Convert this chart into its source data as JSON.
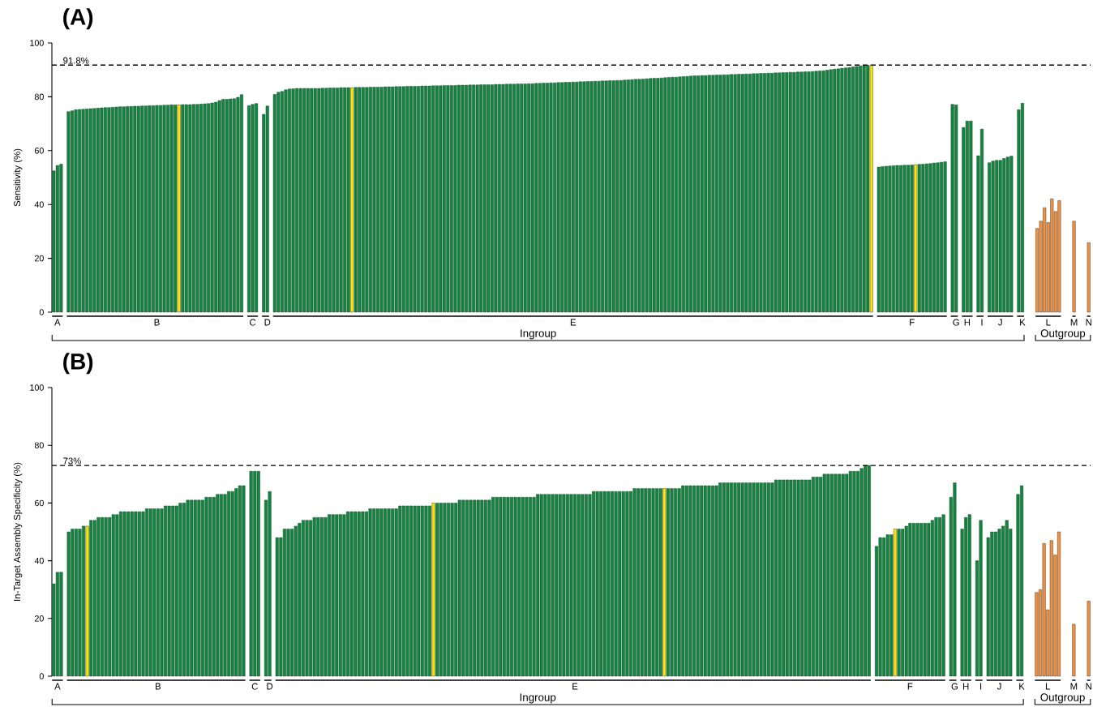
{
  "chart_data": [
    {
      "type": "bar",
      "title": "(A)",
      "ylabel": "Sensitivity (%)",
      "ylim": [
        0,
        100
      ],
      "yticks": [
        0,
        20,
        40,
        60,
        80,
        100
      ],
      "ref_lines": [
        {
          "axis": "y",
          "value": 91.8,
          "label": "91.8%",
          "line_style": "dashed"
        }
      ],
      "annotations": [
        "Ingroup",
        "Outgroup"
      ],
      "categories": [
        null,
        "A",
        null,
        null,
        null,
        null,
        null,
        null,
        null,
        null,
        null,
        null,
        null,
        null,
        null,
        null,
        null,
        null,
        null,
        null,
        null,
        null,
        null,
        null,
        null,
        null,
        null,
        null,
        "B",
        null,
        null,
        null,
        null,
        null,
        null,
        null,
        null,
        null,
        null,
        null,
        null,
        null,
        null,
        null,
        null,
        null,
        null,
        null,
        null,
        null,
        null,
        null,
        null,
        null,
        "C",
        null,
        null,
        null,
        "D",
        null,
        null,
        null,
        null,
        null,
        null,
        null,
        null,
        null,
        null,
        null,
        null,
        null,
        null,
        null,
        null,
        null,
        null,
        null,
        null,
        null,
        null,
        null,
        null,
        null,
        null,
        null,
        null,
        null,
        null,
        null,
        null,
        null,
        null,
        null,
        null,
        null,
        null,
        null,
        null,
        null,
        null,
        null,
        null,
        null,
        null,
        null,
        null,
        null,
        null,
        null,
        null,
        null,
        null,
        null,
        null,
        null,
        null,
        null,
        null,
        null,
        null,
        null,
        null,
        null,
        null,
        null,
        null,
        null,
        null,
        null,
        null,
        null,
        null,
        null,
        null,
        null,
        null,
        null,
        null,
        null,
        null,
        "E",
        null,
        null,
        null,
        null,
        null,
        null,
        null,
        null,
        null,
        null,
        null,
        null,
        null,
        null,
        null,
        null,
        null,
        null,
        null,
        null,
        null,
        null,
        null,
        null,
        null,
        null,
        null,
        null,
        null,
        null,
        null,
        null,
        null,
        null,
        null,
        null,
        null,
        null,
        null,
        null,
        null,
        null,
        null,
        null,
        null,
        null,
        null,
        null,
        null,
        null,
        null,
        null,
        null,
        null,
        null,
        null,
        null,
        null,
        null,
        null,
        null,
        null,
        null,
        null,
        null,
        null,
        null,
        null,
        null,
        null,
        null,
        null,
        null,
        null,
        null,
        null,
        null,
        null,
        null,
        null,
        null,
        null,
        null,
        null,
        null,
        null,
        null,
        null,
        null,
        null,
        null,
        "F",
        null,
        null,
        null,
        null,
        null,
        null,
        null,
        null,
        null,
        null,
        null,
        "G",
        null,
        null,
        "H",
        null,
        null,
        null,
        "I",
        null,
        null,
        null,
        null,
        "J",
        null,
        null,
        null,
        null,
        null,
        "K",
        null,
        null,
        null,
        null,
        null,
        null,
        "L",
        null,
        null,
        null,
        null,
        null,
        null,
        "M",
        null,
        null,
        null,
        "N"
      ],
      "values": [
        52.5,
        54.5,
        55.0,
        null,
        74.5,
        74.8,
        75.2,
        75.3,
        75.4,
        75.5,
        75.6,
        75.7,
        75.8,
        75.9,
        76.0,
        76.0,
        76.1,
        76.2,
        76.3,
        76.3,
        76.4,
        76.4,
        76.5,
        76.5,
        76.6,
        76.6,
        76.7,
        76.7,
        76.8,
        76.8,
        76.9,
        76.9,
        77.0,
        77.0,
        77.0,
        77.1,
        77.1,
        77.1,
        77.2,
        77.2,
        77.3,
        77.4,
        77.5,
        77.7,
        78.0,
        78.6,
        79.1,
        79.1,
        79.2,
        79.3,
        79.8,
        80.8,
        null,
        76.7,
        77.2,
        77.5,
        null,
        73.5,
        76.6,
        null,
        80.9,
        81.7,
        82.0,
        82.6,
        82.9,
        83.0,
        83.1,
        83.1,
        83.1,
        83.1,
        83.1,
        83.1,
        83.1,
        83.2,
        83.2,
        83.3,
        83.3,
        83.3,
        83.4,
        83.4,
        83.4,
        83.4,
        83.5,
        83.5,
        83.5,
        83.5,
        83.6,
        83.6,
        83.6,
        83.6,
        83.7,
        83.7,
        83.7,
        83.8,
        83.8,
        83.8,
        83.9,
        83.9,
        83.9,
        83.9,
        84.0,
        84.0,
        84.0,
        84.1,
        84.1,
        84.1,
        84.2,
        84.2,
        84.2,
        84.2,
        84.3,
        84.3,
        84.3,
        84.4,
        84.4,
        84.4,
        84.5,
        84.5,
        84.5,
        84.5,
        84.6,
        84.6,
        84.6,
        84.7,
        84.7,
        84.7,
        84.8,
        84.8,
        84.8,
        84.9,
        84.9,
        85.0,
        85.0,
        85.1,
        85.1,
        85.2,
        85.2,
        85.3,
        85.3,
        85.4,
        85.4,
        85.5,
        85.5,
        85.6,
        85.6,
        85.7,
        85.7,
        85.8,
        85.8,
        85.9,
        85.9,
        86.0,
        86.0,
        86.1,
        86.1,
        86.2,
        86.3,
        86.4,
        86.5,
        86.5,
        86.6,
        86.7,
        86.8,
        86.9,
        86.9,
        87.0,
        87.1,
        87.2,
        87.3,
        87.3,
        87.4,
        87.5,
        87.6,
        87.7,
        87.8,
        87.8,
        87.9,
        87.9,
        88.0,
        88.0,
        88.1,
        88.1,
        88.2,
        88.2,
        88.3,
        88.3,
        88.4,
        88.4,
        88.5,
        88.5,
        88.6,
        88.6,
        88.7,
        88.7,
        88.8,
        88.8,
        88.9,
        88.9,
        89.0,
        89.0,
        89.1,
        89.1,
        89.2,
        89.2,
        89.3,
        89.3,
        89.4,
        89.5,
        89.6,
        89.7,
        89.9,
        90.1,
        90.3,
        90.4,
        90.6,
        90.7,
        90.9,
        91.1,
        91.3,
        91.5,
        91.6,
        91.7,
        91.8,
        null,
        53.9,
        54.1,
        54.2,
        54.3,
        54.4,
        54.5,
        54.5,
        54.6,
        54.6,
        54.7,
        54.8,
        54.9,
        55.0,
        55.1,
        55.2,
        55.4,
        55.5,
        55.7,
        55.9,
        null,
        77.2,
        77.0,
        null,
        68.6,
        71.0,
        71.0,
        null,
        58.1,
        68.0,
        null,
        55.5,
        56.1,
        56.4,
        56.4,
        57.1,
        57.6,
        58.0,
        null,
        75.2,
        77.6,
        null,
        null,
        null,
        31.1,
        33.8,
        38.8,
        33.3,
        42.1,
        37.4,
        41.4,
        null,
        null,
        null,
        33.8,
        null,
        null,
        null,
        25.8
      ],
      "colors": [
        "#0b8a3e",
        "#0b8a3e",
        "#0b8a3e",
        null,
        "#0b8a3e",
        "#0b8a3e",
        "#0b8a3e",
        "#0b8a3e",
        "#0b8a3e",
        "#0b8a3e",
        "#0b8a3e",
        "#0b8a3e",
        "#0b8a3e",
        "#0b8a3e",
        "#0b8a3e",
        "#0b8a3e",
        "#0b8a3e",
        "#0b8a3e",
        "#0b8a3e",
        "#0b8a3e",
        "#0b8a3e",
        "#0b8a3e",
        "#0b8a3e",
        "#0b8a3e",
        "#0b8a3e",
        "#0b8a3e",
        "#0b8a3e",
        "#0b8a3e",
        "#0b8a3e",
        "#0b8a3e",
        "#0b8a3e",
        "#0b8a3e",
        "#0b8a3e",
        "#0b8a3e",
        "#ffe500",
        "#0b8a3e",
        "#0b8a3e",
        "#0b8a3e",
        "#0b8a3e",
        "#0b8a3e",
        "#0b8a3e",
        "#0b8a3e",
        "#0b8a3e",
        "#0b8a3e",
        "#0b8a3e",
        "#0b8a3e",
        "#0b8a3e",
        "#0b8a3e",
        "#0b8a3e",
        "#0b8a3e",
        "#0b8a3e",
        "#0b8a3e",
        null,
        "#0b8a3e",
        "#0b8a3e",
        "#0b8a3e",
        null,
        "#0b8a3e",
        "#0b8a3e",
        null,
        "#0b8a3e",
        "#0b8a3e",
        "#0b8a3e",
        "#0b8a3e",
        "#0b8a3e",
        "#0b8a3e",
        "#0b8a3e",
        "#0b8a3e",
        "#0b8a3e",
        "#0b8a3e",
        "#0b8a3e",
        "#0b8a3e",
        "#0b8a3e",
        "#0b8a3e",
        "#0b8a3e",
        "#0b8a3e",
        "#0b8a3e",
        "#0b8a3e",
        "#0b8a3e",
        "#0b8a3e",
        "#0b8a3e",
        "#ffe500",
        "#0b8a3e",
        "#0b8a3e",
        "#0b8a3e",
        "#0b8a3e",
        "#0b8a3e",
        "#0b8a3e",
        "#0b8a3e",
        "#0b8a3e",
        "#0b8a3e",
        "#0b8a3e",
        "#0b8a3e",
        "#0b8a3e",
        "#0b8a3e",
        "#0b8a3e",
        "#0b8a3e",
        "#0b8a3e",
        "#0b8a3e",
        "#0b8a3e",
        "#0b8a3e",
        "#0b8a3e",
        "#0b8a3e",
        "#0b8a3e",
        "#0b8a3e",
        "#0b8a3e",
        "#0b8a3e",
        "#0b8a3e",
        "#0b8a3e",
        "#0b8a3e",
        "#0b8a3e",
        "#0b8a3e",
        "#0b8a3e",
        "#0b8a3e",
        "#0b8a3e",
        "#0b8a3e",
        "#0b8a3e",
        "#0b8a3e",
        "#0b8a3e",
        "#0b8a3e",
        "#0b8a3e",
        "#0b8a3e",
        "#0b8a3e",
        "#0b8a3e",
        "#0b8a3e",
        "#0b8a3e",
        "#0b8a3e",
        "#0b8a3e",
        "#0b8a3e",
        "#0b8a3e",
        "#0b8a3e",
        "#0b8a3e",
        "#0b8a3e",
        "#0b8a3e",
        "#0b8a3e",
        "#0b8a3e",
        "#0b8a3e",
        "#0b8a3e",
        "#0b8a3e",
        "#0b8a3e",
        "#0b8a3e",
        "#0b8a3e",
        "#0b8a3e",
        "#0b8a3e",
        "#0b8a3e",
        "#0b8a3e",
        "#0b8a3e",
        "#0b8a3e",
        "#0b8a3e",
        "#0b8a3e",
        "#0b8a3e",
        "#0b8a3e",
        "#0b8a3e",
        "#0b8a3e",
        "#0b8a3e",
        "#0b8a3e",
        "#0b8a3e",
        "#0b8a3e",
        "#0b8a3e",
        "#0b8a3e",
        "#0b8a3e",
        "#0b8a3e",
        "#0b8a3e",
        "#0b8a3e",
        "#0b8a3e",
        "#0b8a3e",
        "#0b8a3e",
        "#0b8a3e",
        "#0b8a3e",
        "#0b8a3e",
        "#0b8a3e",
        "#0b8a3e",
        "#0b8a3e",
        "#0b8a3e",
        "#0b8a3e",
        "#0b8a3e",
        "#0b8a3e",
        "#0b8a3e",
        "#0b8a3e",
        "#0b8a3e",
        "#0b8a3e",
        "#0b8a3e",
        "#0b8a3e",
        "#0b8a3e",
        "#0b8a3e",
        "#0b8a3e",
        "#0b8a3e",
        "#0b8a3e",
        "#0b8a3e",
        "#0b8a3e",
        "#0b8a3e",
        "#0b8a3e",
        "#0b8a3e",
        "#0b8a3e",
        "#0b8a3e",
        "#0b8a3e",
        "#0b8a3e",
        "#0b8a3e",
        "#0b8a3e",
        "#0b8a3e",
        "#0b8a3e",
        "#0b8a3e",
        "#0b8a3e",
        "#0b8a3e",
        "#0b8a3e",
        "#0b8a3e",
        "#0b8a3e",
        "#0b8a3e",
        "#0b8a3e",
        "#0b8a3e",
        "#0b8a3e",
        "#0b8a3e",
        "#0b8a3e",
        "#0b8a3e",
        "#0b8a3e",
        "#0b8a3e",
        "#0b8a3e",
        "#0b8a3e",
        "#0b8a3e",
        "#0b8a3e",
        "#0b8a3e",
        "#0b8a3e",
        "#ffe500",
        null,
        "#0b8a3e",
        "#0b8a3e",
        "#0b8a3e",
        "#0b8a3e",
        "#0b8a3e",
        "#0b8a3e",
        "#0b8a3e",
        "#0b8a3e",
        "#0b8a3e",
        "#0b8a3e",
        "#ffe500",
        "#0b8a3e",
        "#0b8a3e",
        "#0b8a3e",
        "#0b8a3e",
        "#0b8a3e",
        "#0b8a3e",
        "#0b8a3e",
        "#0b8a3e",
        null,
        "#0b8a3e",
        "#0b8a3e",
        null,
        "#0b8a3e",
        "#0b8a3e",
        "#0b8a3e",
        null,
        "#0b8a3e",
        "#0b8a3e",
        null,
        "#0b8a3e",
        "#0b8a3e",
        "#0b8a3e",
        "#0b8a3e",
        "#0b8a3e",
        "#0b8a3e",
        "#0b8a3e",
        null,
        "#0b8a3e",
        "#0b8a3e",
        null,
        null,
        null,
        "#f4913f",
        "#f4913f",
        "#f4913f",
        "#f4913f",
        "#f4913f",
        "#f4913f",
        "#f4913f",
        null,
        null,
        null,
        "#f4913f",
        null,
        null,
        null,
        "#f4913f"
      ]
    },
    {
      "type": "bar",
      "title": "(B)",
      "ylabel": "In-Target Assembly Specificity (%)",
      "ylim": [
        0,
        100
      ],
      "yticks": [
        0,
        20,
        40,
        60,
        80,
        100
      ],
      "ref_lines": [
        {
          "axis": "y",
          "value": 73,
          "label": "73%",
          "line_style": "dashed"
        }
      ],
      "annotations": [
        "Ingroup",
        "Outgroup"
      ],
      "categories": [
        null,
        "A",
        null,
        null,
        null,
        null,
        null,
        null,
        null,
        null,
        null,
        null,
        null,
        null,
        null,
        null,
        null,
        null,
        null,
        null,
        null,
        null,
        null,
        null,
        null,
        null,
        null,
        null,
        "B",
        null,
        null,
        null,
        null,
        null,
        null,
        null,
        null,
        null,
        null,
        null,
        null,
        null,
        null,
        null,
        null,
        null,
        null,
        null,
        null,
        null,
        null,
        null,
        null,
        null,
        "C",
        null,
        null,
        null,
        "D",
        null,
        null,
        null,
        null,
        null,
        null,
        null,
        null,
        null,
        null,
        null,
        null,
        null,
        null,
        null,
        null,
        null,
        null,
        null,
        null,
        null,
        null,
        null,
        null,
        null,
        null,
        null,
        null,
        null,
        null,
        null,
        null,
        null,
        null,
        null,
        null,
        null,
        null,
        null,
        null,
        null,
        null,
        null,
        null,
        null,
        null,
        null,
        null,
        null,
        null,
        null,
        null,
        null,
        null,
        null,
        null,
        null,
        null,
        null,
        null,
        null,
        null,
        null,
        null,
        null,
        null,
        null,
        null,
        null,
        null,
        null,
        null,
        null,
        null,
        null,
        null,
        null,
        null,
        null,
        null,
        null,
        "E",
        null,
        null,
        null,
        null,
        null,
        null,
        null,
        null,
        null,
        null,
        null,
        null,
        null,
        null,
        null,
        null,
        null,
        null,
        null,
        null,
        null,
        null,
        null,
        null,
        null,
        null,
        null,
        null,
        null,
        null,
        null,
        null,
        null,
        null,
        null,
        null,
        null,
        null,
        null,
        null,
        null,
        null,
        null,
        null,
        null,
        null,
        null,
        null,
        null,
        null,
        null,
        null,
        null,
        null,
        null,
        null,
        null,
        null,
        null,
        null,
        null,
        null,
        null,
        null,
        null,
        null,
        null,
        null,
        null,
        null,
        null,
        null,
        null,
        null,
        null,
        null,
        null,
        null,
        null,
        null,
        null,
        null,
        null,
        null,
        null,
        null,
        null,
        null,
        null,
        "F",
        null,
        null,
        null,
        null,
        null,
        null,
        null,
        null,
        null,
        null,
        null,
        "G",
        null,
        null,
        "H",
        null,
        null,
        null,
        "I",
        null,
        null,
        null,
        null,
        "J",
        null,
        null,
        null,
        null,
        null,
        "K",
        null,
        null,
        null,
        null,
        null,
        null,
        "L",
        null,
        null,
        null,
        null,
        null,
        null,
        "M",
        null,
        null,
        null,
        "N"
      ],
      "values": [
        32,
        36,
        36,
        null,
        50,
        51,
        51,
        51,
        52,
        52,
        54,
        54,
        55,
        55,
        55,
        55,
        56,
        56,
        57,
        57,
        57,
        57,
        57,
        57,
        57,
        58,
        58,
        58,
        58,
        58,
        59,
        59,
        59,
        59,
        60,
        60,
        61,
        61,
        61,
        61,
        61,
        62,
        62,
        62,
        63,
        63,
        63,
        64,
        64,
        65,
        66,
        66,
        null,
        71,
        71,
        71,
        null,
        61,
        64,
        null,
        48,
        48,
        51,
        51,
        51,
        52,
        53,
        54,
        54,
        54,
        55,
        55,
        55,
        55,
        56,
        56,
        56,
        56,
        56,
        57,
        57,
        57,
        57,
        57,
        57,
        58,
        58,
        58,
        58,
        58,
        58,
        58,
        58,
        59,
        59,
        59,
        59,
        59,
        59,
        59,
        59,
        59,
        60,
        60,
        60,
        60,
        60,
        60,
        60,
        61,
        61,
        61,
        61,
        61,
        61,
        61,
        61,
        61,
        62,
        62,
        62,
        62,
        62,
        62,
        62,
        62,
        62,
        62,
        62,
        62,
        63,
        63,
        63,
        63,
        63,
        63,
        63,
        63,
        63,
        63,
        63,
        63,
        63,
        63,
        63,
        64,
        64,
        64,
        64,
        64,
        64,
        64,
        64,
        64,
        64,
        64,
        65,
        65,
        65,
        65,
        65,
        65,
        65,
        65,
        65,
        65,
        65,
        65,
        65,
        66,
        66,
        66,
        66,
        66,
        66,
        66,
        66,
        66,
        66,
        67,
        67,
        67,
        67,
        67,
        67,
        67,
        67,
        67,
        67,
        67,
        67,
        67,
        67,
        67,
        68,
        68,
        68,
        68,
        68,
        68,
        68,
        68,
        68,
        68,
        69,
        69,
        69,
        70,
        70,
        70,
        70,
        70,
        70,
        70,
        71,
        71,
        71,
        72,
        73,
        73,
        null,
        45,
        48,
        48,
        49,
        49,
        51,
        51,
        51,
        52,
        53,
        53,
        53,
        53,
        53,
        53,
        54,
        55,
        55,
        56,
        null,
        62,
        67,
        null,
        51,
        55,
        56,
        null,
        40,
        54,
        null,
        48,
        50,
        50,
        51,
        52,
        54,
        51,
        null,
        63,
        66,
        null,
        null,
        null,
        29,
        30,
        46,
        23,
        47,
        42,
        50,
        null,
        null,
        null,
        18,
        null,
        null,
        null,
        26
      ],
      "colors": [
        "#0b8a3e",
        "#0b8a3e",
        "#0b8a3e",
        null,
        "#0b8a3e",
        "#0b8a3e",
        "#0b8a3e",
        "#0b8a3e",
        "#0b8a3e",
        "#ffe500",
        "#0b8a3e",
        "#0b8a3e",
        "#0b8a3e",
        "#0b8a3e",
        "#0b8a3e",
        "#0b8a3e",
        "#0b8a3e",
        "#0b8a3e",
        "#0b8a3e",
        "#0b8a3e",
        "#0b8a3e",
        "#0b8a3e",
        "#0b8a3e",
        "#0b8a3e",
        "#0b8a3e",
        "#0b8a3e",
        "#0b8a3e",
        "#0b8a3e",
        "#0b8a3e",
        "#0b8a3e",
        "#0b8a3e",
        "#0b8a3e",
        "#0b8a3e",
        "#0b8a3e",
        "#0b8a3e",
        "#0b8a3e",
        "#0b8a3e",
        "#0b8a3e",
        "#0b8a3e",
        "#0b8a3e",
        "#0b8a3e",
        "#0b8a3e",
        "#0b8a3e",
        "#0b8a3e",
        "#0b8a3e",
        "#0b8a3e",
        "#0b8a3e",
        "#0b8a3e",
        "#0b8a3e",
        "#0b8a3e",
        "#0b8a3e",
        "#0b8a3e",
        null,
        "#0b8a3e",
        "#0b8a3e",
        "#0b8a3e",
        null,
        "#0b8a3e",
        "#0b8a3e",
        null,
        "#0b8a3e",
        "#0b8a3e",
        "#0b8a3e",
        "#0b8a3e",
        "#0b8a3e",
        "#0b8a3e",
        "#0b8a3e",
        "#0b8a3e",
        "#0b8a3e",
        "#0b8a3e",
        "#0b8a3e",
        "#0b8a3e",
        "#0b8a3e",
        "#0b8a3e",
        "#0b8a3e",
        "#0b8a3e",
        "#0b8a3e",
        "#0b8a3e",
        "#0b8a3e",
        "#0b8a3e",
        "#0b8a3e",
        "#0b8a3e",
        "#0b8a3e",
        "#0b8a3e",
        "#0b8a3e",
        "#0b8a3e",
        "#0b8a3e",
        "#0b8a3e",
        "#0b8a3e",
        "#0b8a3e",
        "#0b8a3e",
        "#0b8a3e",
        "#0b8a3e",
        "#0b8a3e",
        "#0b8a3e",
        "#0b8a3e",
        "#0b8a3e",
        "#0b8a3e",
        "#0b8a3e",
        "#0b8a3e",
        "#0b8a3e",
        "#0b8a3e",
        "#ffe500",
        "#0b8a3e",
        "#0b8a3e",
        "#0b8a3e",
        "#0b8a3e",
        "#0b8a3e",
        "#0b8a3e",
        "#0b8a3e",
        "#0b8a3e",
        "#0b8a3e",
        "#0b8a3e",
        "#0b8a3e",
        "#0b8a3e",
        "#0b8a3e",
        "#0b8a3e",
        "#0b8a3e",
        "#0b8a3e",
        "#0b8a3e",
        "#0b8a3e",
        "#0b8a3e",
        "#0b8a3e",
        "#0b8a3e",
        "#0b8a3e",
        "#0b8a3e",
        "#0b8a3e",
        "#0b8a3e",
        "#0b8a3e",
        "#0b8a3e",
        "#0b8a3e",
        "#0b8a3e",
        "#0b8a3e",
        "#0b8a3e",
        "#0b8a3e",
        "#0b8a3e",
        "#0b8a3e",
        "#0b8a3e",
        "#0b8a3e",
        "#0b8a3e",
        "#0b8a3e",
        "#0b8a3e",
        "#0b8a3e",
        "#0b8a3e",
        "#0b8a3e",
        "#0b8a3e",
        "#0b8a3e",
        "#0b8a3e",
        "#0b8a3e",
        "#0b8a3e",
        "#0b8a3e",
        "#0b8a3e",
        "#0b8a3e",
        "#0b8a3e",
        "#0b8a3e",
        "#0b8a3e",
        "#0b8a3e",
        "#0b8a3e",
        "#0b8a3e",
        "#0b8a3e",
        "#0b8a3e",
        "#0b8a3e",
        "#0b8a3e",
        "#0b8a3e",
        "#ffe500",
        "#0b8a3e",
        "#0b8a3e",
        "#0b8a3e",
        "#0b8a3e",
        "#0b8a3e",
        "#0b8a3e",
        "#0b8a3e",
        "#0b8a3e",
        "#0b8a3e",
        "#0b8a3e",
        "#0b8a3e",
        "#0b8a3e",
        "#0b8a3e",
        "#0b8a3e",
        "#0b8a3e",
        "#0b8a3e",
        "#0b8a3e",
        "#0b8a3e",
        "#0b8a3e",
        "#0b8a3e",
        "#0b8a3e",
        "#0b8a3e",
        "#0b8a3e",
        "#0b8a3e",
        "#0b8a3e",
        "#0b8a3e",
        "#0b8a3e",
        "#0b8a3e",
        "#0b8a3e",
        "#0b8a3e",
        "#0b8a3e",
        "#0b8a3e",
        "#0b8a3e",
        "#0b8a3e",
        "#0b8a3e",
        "#0b8a3e",
        "#0b8a3e",
        "#0b8a3e",
        "#0b8a3e",
        "#0b8a3e",
        "#0b8a3e",
        "#0b8a3e",
        "#0b8a3e",
        "#0b8a3e",
        "#0b8a3e",
        "#0b8a3e",
        "#0b8a3e",
        "#0b8a3e",
        "#0b8a3e",
        "#0b8a3e",
        "#0b8a3e",
        "#0b8a3e",
        "#0b8a3e",
        "#0b8a3e",
        "#0b8a3e",
        null,
        "#0b8a3e",
        "#0b8a3e",
        "#0b8a3e",
        "#0b8a3e",
        "#0b8a3e",
        "#ffe500",
        "#0b8a3e",
        "#0b8a3e",
        "#0b8a3e",
        "#0b8a3e",
        "#0b8a3e",
        "#0b8a3e",
        "#0b8a3e",
        "#0b8a3e",
        "#0b8a3e",
        "#0b8a3e",
        "#0b8a3e",
        "#0b8a3e",
        "#0b8a3e",
        null,
        "#0b8a3e",
        "#0b8a3e",
        null,
        "#0b8a3e",
        "#0b8a3e",
        "#0b8a3e",
        null,
        "#0b8a3e",
        "#0b8a3e",
        null,
        "#0b8a3e",
        "#0b8a3e",
        "#0b8a3e",
        "#0b8a3e",
        "#0b8a3e",
        "#0b8a3e",
        "#0b8a3e",
        null,
        "#0b8a3e",
        "#0b8a3e",
        null,
        null,
        null,
        "#f4913f",
        "#f4913f",
        "#f4913f",
        "#f4913f",
        "#f4913f",
        "#f4913f",
        "#f4913f",
        null,
        null,
        null,
        "#f4913f",
        null,
        null,
        null,
        "#f4913f"
      ]
    }
  ]
}
